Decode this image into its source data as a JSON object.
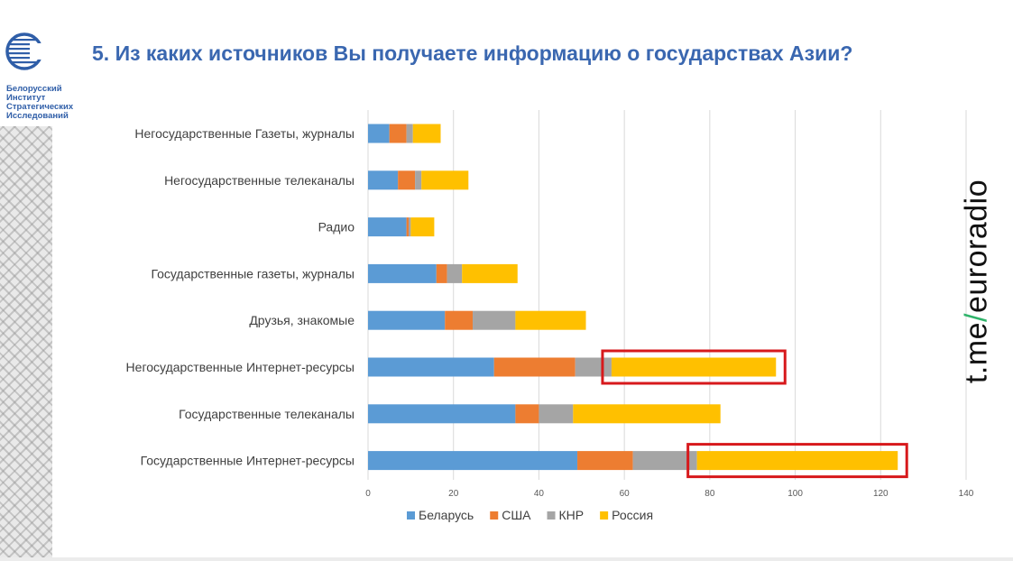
{
  "org": {
    "name_lines": [
      "Белорусский",
      "Институт",
      "Стратегических",
      "Исследований"
    ]
  },
  "slide": {
    "title": "5. Из каких источников Вы получаете информацию о государствах Азии?"
  },
  "watermark": {
    "prefix": "t.me",
    "slash": "/",
    "suffix": "euroradio"
  },
  "colors": {
    "title": "#3a67b0",
    "belarus": "#5b9bd5",
    "usa": "#ed7d31",
    "prc": "#a5a5a5",
    "russia": "#ffc000",
    "highlight": "#d7191c"
  },
  "chart_data": {
    "type": "bar",
    "orientation": "horizontal",
    "stacked": true,
    "title": "",
    "xlabel": "",
    "ylabel": "",
    "xlim": [
      0,
      140
    ],
    "xticks": [
      0,
      20,
      40,
      60,
      80,
      100,
      120,
      140
    ],
    "grid": true,
    "legend_position": "bottom",
    "categories": [
      "Негосударственные Газеты, журналы",
      "Негосударственные телеканалы",
      "Радио",
      "Государственные газеты, журналы",
      "Друзья, знакомые",
      "Негосударственные Интернет-ресурсы",
      "Государственные телеканалы",
      "Государственные Интернет-ресурсы"
    ],
    "series": [
      {
        "name": "Беларусь",
        "color": "#5b9bd5",
        "values": [
          5,
          7,
          9,
          16,
          18,
          29.5,
          34.5,
          49
        ]
      },
      {
        "name": "США",
        "color": "#ed7d31",
        "values": [
          4,
          4,
          0.5,
          2.5,
          6.5,
          19,
          5.5,
          13
        ]
      },
      {
        "name": "КНР",
        "color": "#a5a5a5",
        "values": [
          1.5,
          1.5,
          0.5,
          3.5,
          10,
          8.5,
          8,
          15
        ]
      },
      {
        "name": "Россия",
        "color": "#ffc000",
        "values": [
          6.5,
          11,
          5.5,
          13,
          16.5,
          38.5,
          34.5,
          47
        ]
      }
    ],
    "highlighted_segments": [
      {
        "category_index": 5,
        "series": "Россия"
      },
      {
        "category_index": 7,
        "series": "Россия"
      }
    ]
  }
}
